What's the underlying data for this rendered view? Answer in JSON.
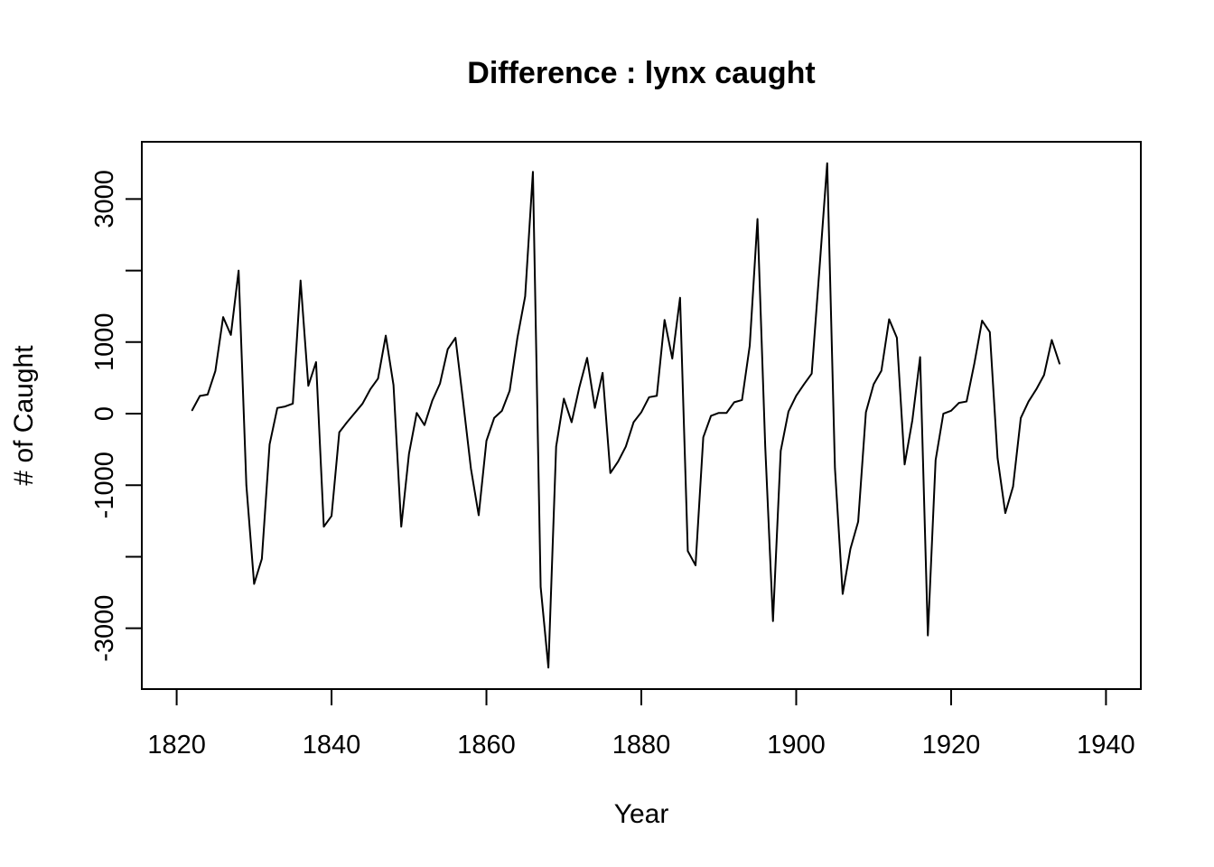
{
  "chart_data": {
    "type": "line",
    "title": "Difference :  lynx caught",
    "xlabel": "Year",
    "ylabel": "# of Caught",
    "xlim": [
      1815.5,
      1944.5
    ],
    "ylim": [
      -3850,
      3800
    ],
    "x_ticks": [
      1820,
      1840,
      1860,
      1880,
      1900,
      1920,
      1940
    ],
    "y_ticks": [
      -3000,
      -2000,
      -1000,
      0,
      1000,
      2000,
      3000
    ],
    "y_tick_labels": [
      "-3000",
      "",
      "-1000",
      "0",
      "1000",
      "",
      "3000"
    ],
    "grid": false,
    "legend": "none",
    "line_color": "#000000",
    "series": [
      {
        "x": [
          1822,
          1823,
          1824,
          1825,
          1826,
          1827,
          1828,
          1829,
          1830,
          1831,
          1832,
          1833,
          1834,
          1835,
          1836,
          1837,
          1838,
          1839,
          1840,
          1841,
          1842,
          1843,
          1844,
          1845,
          1846,
          1847,
          1848,
          1849,
          1850,
          1851,
          1852,
          1853,
          1854,
          1855,
          1856,
          1857,
          1858,
          1859,
          1860,
          1861,
          1862,
          1863,
          1864,
          1865,
          1866,
          1867,
          1868,
          1869,
          1870,
          1871,
          1872,
          1873,
          1874,
          1875,
          1876,
          1877,
          1878,
          1879,
          1880,
          1881,
          1882,
          1883,
          1884,
          1885,
          1886,
          1887,
          1888,
          1889,
          1890,
          1891,
          1892,
          1893,
          1894,
          1895,
          1896,
          1897,
          1898,
          1899,
          1900,
          1901,
          1902,
          1903,
          1904,
          1905,
          1906,
          1907,
          1908,
          1909,
          1910,
          1911,
          1912,
          1913,
          1914,
          1915,
          1916,
          1917,
          1918,
          1919,
          1920,
          1921,
          1922,
          1923,
          1924,
          1925,
          1926,
          1927,
          1928,
          1929,
          1930,
          1931,
          1932,
          1933,
          1934
        ],
        "y": [
          48,
          248,
          267,
          598,
          1350,
          1100,
          2000,
          -1000,
          -2380,
          -2030,
          -430,
          80,
          100,
          140,
          1860,
          390,
          720,
          -1580,
          -1430,
          -260,
          -120,
          10,
          140,
          340,
          490,
          1090,
          400,
          -1580,
          -560,
          10,
          -160,
          180,
          420,
          900,
          1060,
          160,
          -770,
          -1420,
          -380,
          -60,
          40,
          320,
          1060,
          1640,
          3380,
          -2420,
          -3550,
          -460,
          210,
          -120,
          370,
          780,
          80,
          570,
          -830,
          -670,
          -460,
          -120,
          20,
          230,
          250,
          1310,
          770,
          1620,
          -1920,
          -2120,
          -330,
          -30,
          10,
          10,
          160,
          190,
          950,
          2720,
          -460,
          -2900,
          -520,
          30,
          250,
          410,
          560,
          2020,
          3500,
          -760,
          -2520,
          -1890,
          -1510,
          20,
          410,
          600,
          1320,
          1060,
          -710,
          -90,
          790,
          -3100,
          -650,
          0,
          40,
          150,
          170,
          700,
          1300,
          1140,
          -620,
          -1390,
          -1020,
          -60,
          170,
          340,
          540,
          1030,
          700
        ]
      }
    ]
  }
}
